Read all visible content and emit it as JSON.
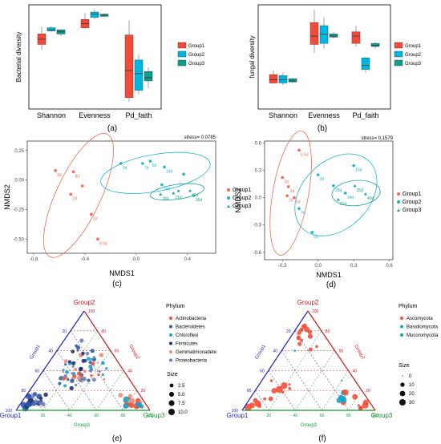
{
  "chart_data": [
    {
      "panel": "(a)",
      "type": "box",
      "ylabel": "Bacterial diversity",
      "categories": [
        "Shannon",
        "Evenness",
        "Pd_faith"
      ],
      "legend": [
        "Group1",
        "Group2",
        "Group3"
      ],
      "colors": [
        "#f04b38",
        "#00b7e0",
        "#0f9e8d"
      ],
      "boxes": [
        [
          {
            "min": 0.57,
            "q1": 0.62,
            "med": 0.67,
            "q3": 0.72,
            "max": 0.79
          },
          {
            "min": 0.74,
            "q1": 0.75,
            "med": 0.76,
            "q3": 0.78,
            "max": 0.79
          },
          {
            "min": 0.7,
            "q1": 0.72,
            "med": 0.74,
            "q3": 0.76,
            "max": 0.77
          }
        ],
        [
          {
            "min": 0.77,
            "q1": 0.78,
            "med": 0.82,
            "q3": 0.86,
            "max": 0.92
          },
          {
            "min": 0.86,
            "q1": 0.88,
            "med": 0.91,
            "q3": 0.93,
            "max": 0.96
          },
          {
            "min": 0.88,
            "q1": 0.89,
            "med": 0.9,
            "q3": 0.91,
            "max": 0.92
          }
        ],
        [
          {
            "min": 0.07,
            "q1": 0.11,
            "med": 0.37,
            "q3": 0.71,
            "max": 0.85
          },
          {
            "min": 0.14,
            "q1": 0.18,
            "med": 0.34,
            "q3": 0.47,
            "max": 0.52
          },
          {
            "min": 0.2,
            "q1": 0.27,
            "med": 0.3,
            "q3": 0.36,
            "max": 0.4
          }
        ]
      ]
    },
    {
      "panel": "(b)",
      "type": "box",
      "ylabel": "fungal diversity",
      "categories": [
        "Shannon",
        "Evenness",
        "Pd_faith"
      ],
      "legend": [
        "Group1",
        "Group2",
        "Group3"
      ],
      "colors": [
        "#f04b38",
        "#00b7e0",
        "#0f9e8d"
      ],
      "boxes": [
        [
          {
            "min": 0.24,
            "q1": 0.25,
            "med": 0.28,
            "q3": 0.33,
            "max": 0.37
          },
          {
            "min": 0.23,
            "q1": 0.25,
            "med": 0.28,
            "q3": 0.32,
            "max": 0.35
          },
          {
            "min": 0.25,
            "q1": 0.26,
            "med": 0.27,
            "q3": 0.29,
            "max": 0.3
          }
        ],
        [
          {
            "min": 0.54,
            "q1": 0.62,
            "med": 0.7,
            "q3": 0.83,
            "max": 0.95
          },
          {
            "min": 0.58,
            "q1": 0.63,
            "med": 0.72,
            "q3": 0.8,
            "max": 0.88
          },
          {
            "min": 0.68,
            "q1": 0.69,
            "med": 0.7,
            "q3": 0.72,
            "max": 0.74
          }
        ],
        [
          {
            "min": 0.6,
            "q1": 0.63,
            "med": 0.7,
            "q3": 0.74,
            "max": 0.8
          },
          {
            "min": 0.35,
            "q1": 0.38,
            "med": 0.42,
            "q3": 0.49,
            "max": 0.5
          },
          {
            "min": 0.58,
            "q1": 0.6,
            "med": 0.61,
            "q3": 0.63,
            "max": 0.64
          }
        ]
      ]
    },
    {
      "panel": "(c)",
      "type": "scatter",
      "stress": "stress= 0.0785",
      "xlabel": "NMDS1",
      "ylabel": "NMDS2",
      "xlim": [
        -0.85,
        0.62
      ],
      "ylim": [
        -0.62,
        0.33
      ],
      "xticks": [
        -0.8,
        -0.4,
        0.0,
        0.4
      ],
      "yticks": [
        0.25,
        0.0,
        -0.25,
        -0.5
      ],
      "xtick_labels": [
        "-0.8",
        "-0.4",
        "0.0",
        "0.4"
      ],
      "ytick_labels": [
        "0.25",
        "0.00",
        "-0.25",
        "-0.50"
      ],
      "legend": [
        "Group1",
        "Group2",
        "Group3"
      ],
      "colors": [
        "#f26a54",
        "#1cb5d1",
        "#11a595"
      ],
      "points": [
        {
          "g": 0,
          "x": -0.63,
          "y": 0.08,
          "label": "3d"
        },
        {
          "g": 0,
          "x": -0.49,
          "y": 0.07,
          "label": "4d"
        },
        {
          "g": 0,
          "x": -0.51,
          "y": -0.12,
          "label": "2d"
        },
        {
          "g": 0,
          "x": -0.35,
          "y": -0.29,
          "label": "1d"
        },
        {
          "g": 0,
          "x": -0.3,
          "y": -0.5,
          "label": "0.5d"
        },
        {
          "g": 0,
          "x": -0.42,
          "y": -0.05,
          "label": ""
        },
        {
          "g": 1,
          "x": -0.12,
          "y": 0.14,
          "label": "3d"
        },
        {
          "g": 1,
          "x": 0.05,
          "y": 0.14,
          "label": "7d"
        },
        {
          "g": 1,
          "x": 0.11,
          "y": 0.16,
          "label": "5d"
        },
        {
          "g": 1,
          "x": 0.22,
          "y": 0.11,
          "label": "14d"
        },
        {
          "g": 1,
          "x": 0.2,
          "y": -0.04,
          "label": "15d"
        },
        {
          "g": 1,
          "x": 0.37,
          "y": 0.05,
          "label": ""
        },
        {
          "g": 2,
          "x": 0.29,
          "y": -0.11,
          "label": "21d"
        },
        {
          "g": 2,
          "x": 0.33,
          "y": -0.09,
          "label": ""
        },
        {
          "g": 2,
          "x": 0.42,
          "y": -0.09,
          "label": "49d"
        },
        {
          "g": 2,
          "x": 0.45,
          "y": -0.13,
          "label": "35d"
        },
        {
          "g": 2,
          "x": 0.19,
          "y": -0.12,
          "label": "28d"
        }
      ],
      "ellipses": [
        {
          "g": 0,
          "cx": -0.45,
          "cy": -0.13,
          "rx": 0.55,
          "ry": 0.18,
          "angle": -65
        },
        {
          "g": 1,
          "cx": 0.15,
          "cy": 0.06,
          "rx": 0.45,
          "ry": 0.15,
          "angle": -10
        },
        {
          "g": 2,
          "cx": 0.32,
          "cy": -0.1,
          "rx": 0.22,
          "ry": 0.06,
          "angle": -8
        }
      ]
    },
    {
      "panel": "(d)",
      "type": "scatter",
      "stress": "stress= 0.1579",
      "xlabel": "NMDS1",
      "ylabel": "NMDS2",
      "xlim": [
        -0.45,
        0.63
      ],
      "ylim": [
        -0.68,
        0.62
      ],
      "xticks": [
        -0.3,
        0.0,
        0.3,
        0.6
      ],
      "yticks": [
        0.6,
        0.3,
        0.0,
        -0.3,
        -0.6
      ],
      "xtick_labels": [
        "-0.3",
        "0.0",
        "0.3",
        "0.6"
      ],
      "ytick_labels": [
        "0.6",
        "0.3",
        "0.0",
        "-0.3",
        "-0.6"
      ],
      "legend": [
        "Group1",
        "Group2",
        "Group3"
      ],
      "colors": [
        "#f26a54",
        "#1cb5d1",
        "#11a595"
      ],
      "points": [
        {
          "g": 0,
          "x": -0.16,
          "y": 0.52,
          "label": "0.5d"
        },
        {
          "g": 0,
          "x": -0.3,
          "y": 0.22,
          "label": "3d"
        },
        {
          "g": 0,
          "x": -0.25,
          "y": 0.12,
          "label": "1d"
        },
        {
          "g": 0,
          "x": -0.26,
          "y": 0.02,
          "label": "2d"
        },
        {
          "g": 0,
          "x": -0.2,
          "y": 0.0,
          "label": "5d"
        },
        {
          "g": 1,
          "x": 0.0,
          "y": 0.25,
          "label": "3d"
        },
        {
          "g": 1,
          "x": 0.3,
          "y": 0.35,
          "label": "15d"
        },
        {
          "g": 1,
          "x": -0.16,
          "y": -0.12,
          "label": "7d"
        },
        {
          "g": 1,
          "x": -0.05,
          "y": -0.38,
          "label": "5d"
        },
        {
          "g": 1,
          "x": 0.13,
          "y": 0.13,
          "label": "28d"
        },
        {
          "g": 1,
          "x": 0.23,
          "y": 0.05,
          "label": "14d"
        },
        {
          "g": 2,
          "x": 0.31,
          "y": 0.13,
          "label": "35d"
        },
        {
          "g": 2,
          "x": 0.4,
          "y": 0.04,
          "label": "49d"
        },
        {
          "g": 2,
          "x": 0.17,
          "y": -0.02,
          "label": "21d"
        }
      ],
      "ellipses": [
        {
          "g": 0,
          "cx": -0.23,
          "cy": 0.05,
          "rx": 0.6,
          "ry": 0.17,
          "angle": -80
        },
        {
          "g": 1,
          "cx": 0.15,
          "cy": 0.03,
          "rx": 0.45,
          "ry": 0.32,
          "angle": -45
        },
        {
          "g": 2,
          "cx": 0.32,
          "cy": 0.05,
          "rx": 0.23,
          "ry": 0.12,
          "angle": -5
        }
      ]
    },
    {
      "panel": "(e)",
      "type": "ternary",
      "axes": {
        "left": "Group1",
        "top": "Group2",
        "right": "Group3"
      },
      "axis_colors": {
        "left": "#1f1fc8",
        "top": "#c8191e",
        "right": "#0e9a2a"
      },
      "ticks": [
        20,
        40,
        60,
        80,
        100
      ],
      "legend_title": "Phylum",
      "legend": [
        "Actinobacteria",
        "Bacteroidetes",
        "Chloroflexi",
        "Firmicutes",
        "Gemmatimonadete",
        "Proteobacteria"
      ],
      "colors": [
        "#f0503a",
        "#2b5aa8",
        "#1aa3c9",
        "#1f2f73",
        "#f28d7a",
        "#6f7dbd"
      ],
      "size_title": "Size",
      "size_labels": [
        "2.5",
        "5.0",
        "7.5",
        "10.0"
      ],
      "size_values": [
        2.5,
        5.0,
        7.5,
        10.0
      ]
    },
    {
      "panel": "(f)",
      "type": "ternary",
      "axes": {
        "left": "Group1",
        "top": "Group2",
        "right": "Group3"
      },
      "axis_colors": {
        "left": "#1f1fc8",
        "top": "#c8191e",
        "right": "#0e9a2a"
      },
      "ticks": [
        20,
        40,
        60,
        80,
        100
      ],
      "legend_title": "Phylum",
      "legend": [
        "Ascomycota",
        "Basidiomycota",
        "Mucoromycota"
      ],
      "colors": [
        "#f0503a",
        "#1aa3c9",
        "#11a595"
      ],
      "size_title": "Size",
      "size_labels": [
        "0",
        "10",
        "20",
        "30"
      ],
      "size_values": [
        0,
        10,
        20,
        30
      ]
    }
  ],
  "captions": [
    "(a)",
    "(b)",
    "(c)",
    "(d)",
    "(e)",
    "(f)"
  ]
}
